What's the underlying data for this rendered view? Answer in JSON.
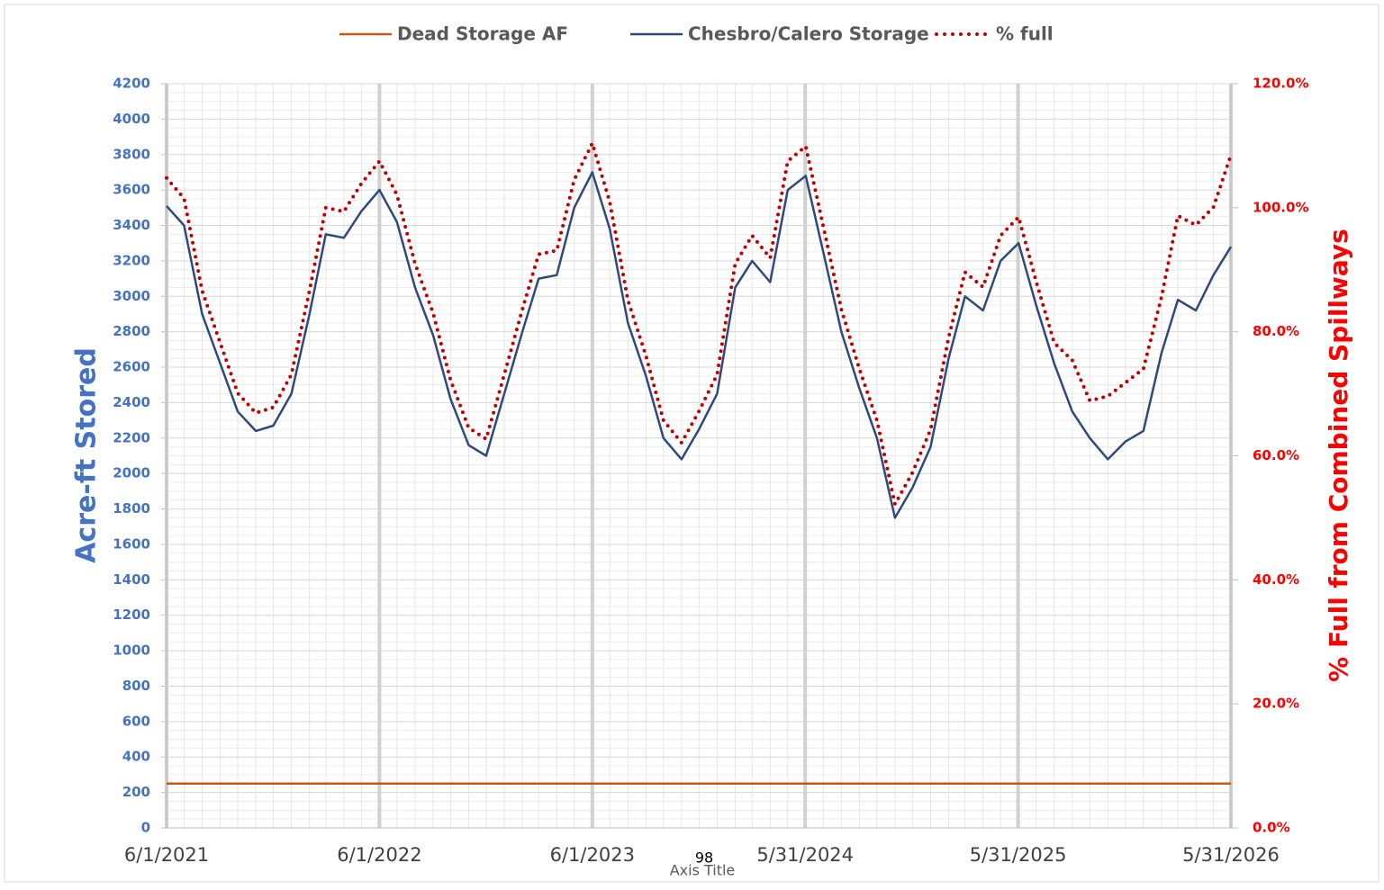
{
  "chart_data": {
    "type": "line",
    "x_label": "Axis Title",
    "y_label": "Acre-ft Stored",
    "y2_label": "% Full from Combined Spillways",
    "annotations": [
      "98"
    ],
    "x": [
      "6/1/2021",
      "7/1/2021",
      "8/1/2021",
      "9/1/2021",
      "10/1/2021",
      "11/1/2021",
      "12/1/2021",
      "1/1/2022",
      "2/1/2022",
      "3/1/2022",
      "4/1/2022",
      "5/1/2022",
      "6/1/2022",
      "7/1/2022",
      "8/1/2022",
      "9/1/2022",
      "10/1/2022",
      "11/1/2022",
      "12/1/2022",
      "1/1/2023",
      "2/1/2023",
      "3/1/2023",
      "4/1/2023",
      "5/1/2023",
      "6/1/2023",
      "7/1/2023",
      "8/1/2023",
      "9/1/2023",
      "10/1/2023",
      "11/1/2023",
      "12/1/2023",
      "1/1/2024",
      "2/1/2024",
      "3/1/2024",
      "4/1/2024",
      "5/1/2024",
      "6/1/2024",
      "7/1/2024",
      "8/1/2024",
      "9/1/2024",
      "10/1/2024",
      "11/1/2024",
      "12/1/2024",
      "1/1/2025",
      "2/1/2025",
      "3/1/2025",
      "4/1/2025",
      "5/1/2025",
      "6/1/2025",
      "7/1/2025",
      "8/1/2025",
      "9/1/2025",
      "10/1/2025",
      "11/1/2025",
      "12/1/2025",
      "1/1/2026",
      "2/1/2026",
      "3/1/2026",
      "4/1/2026",
      "5/1/2026",
      "5/31/2026"
    ],
    "xlim": [
      "6/1/2021",
      "5/31/2026"
    ],
    "xticks": [
      "6/1/2021",
      "6/1/2022",
      "6/1/2023",
      "5/31/2024",
      "5/31/2025",
      "5/31/2026"
    ],
    "ylim": [
      0,
      4200
    ],
    "yticks": [
      0,
      200,
      400,
      600,
      800,
      1000,
      1200,
      1400,
      1600,
      1800,
      2000,
      2200,
      2400,
      2600,
      2800,
      3000,
      3200,
      3400,
      3600,
      3800,
      4000,
      4200
    ],
    "y2lim": [
      0,
      120
    ],
    "y2ticks": [
      {
        "value": 0,
        "label": "0.0%"
      },
      {
        "value": 20,
        "label": "20.0%"
      },
      {
        "value": 40,
        "label": "40.0%"
      },
      {
        "value": 60,
        "label": "60.0%"
      },
      {
        "value": 80,
        "label": "80.0%"
      },
      {
        "value": 100,
        "label": "100.0%"
      },
      {
        "value": 120,
        "label": "120.0%"
      }
    ],
    "grid": true,
    "legend": "top",
    "series": [
      {
        "name": "Dead Storage AF",
        "color": "#c55a11",
        "style": "solid",
        "values": [
          250,
          250,
          250,
          250,
          250,
          250,
          250,
          250,
          250,
          250,
          250,
          250,
          250,
          250,
          250,
          250,
          250,
          250,
          250,
          250,
          250,
          250,
          250,
          250,
          250,
          250,
          250,
          250,
          250,
          250,
          250,
          250,
          250,
          250,
          250,
          250,
          250,
          250,
          250,
          250,
          250,
          250,
          250,
          250,
          250,
          250,
          250,
          250,
          250,
          250,
          250,
          250,
          250,
          250,
          250,
          250,
          250,
          250,
          250,
          250,
          250
        ]
      },
      {
        "name": "Chesbro/Calero Storage",
        "color": "#2e4a7d",
        "style": "solid",
        "values": [
          3510,
          3400,
          2900,
          2620,
          2350,
          2240,
          2270,
          2450,
          2900,
          3350,
          3330,
          3480,
          3600,
          3420,
          3050,
          2780,
          2420,
          2160,
          2100,
          2450,
          2800,
          3100,
          3120,
          3500,
          3700,
          3380,
          2850,
          2550,
          2200,
          2080,
          2250,
          2450,
          3050,
          3200,
          3080,
          3600,
          3680,
          3250,
          2800,
          2480,
          2200,
          1750,
          1920,
          2150,
          2650,
          3000,
          2920,
          3200,
          3300,
          2950,
          2620,
          2350,
          2200,
          2080,
          2180,
          2240,
          2680,
          2980,
          2920,
          3120,
          3280
        ]
      },
      {
        "name": "% full",
        "color": "#c00000",
        "style": "dotted",
        "axis": "y2",
        "values": [
          104.8,
          101.5,
          86.6,
          78.2,
          70.1,
          66.9,
          67.8,
          73.1,
          86.6,
          100.0,
          99.4,
          103.9,
          107.5,
          102.1,
          91.0,
          83.0,
          72.2,
          64.5,
          62.7,
          73.1,
          83.6,
          92.5,
          93.1,
          104.5,
          110.4,
          100.9,
          85.1,
          76.1,
          65.7,
          62.1,
          67.2,
          73.1,
          91.0,
          95.5,
          91.9,
          107.5,
          109.9,
          97.0,
          83.6,
          74.0,
          65.7,
          52.2,
          57.3,
          64.2,
          79.1,
          89.6,
          87.2,
          95.5,
          98.5,
          88.1,
          78.2,
          75.4,
          68.9,
          69.6,
          71.8,
          74.0,
          85.6,
          98.7,
          97.2,
          100.1,
          108.5
        ]
      }
    ]
  }
}
